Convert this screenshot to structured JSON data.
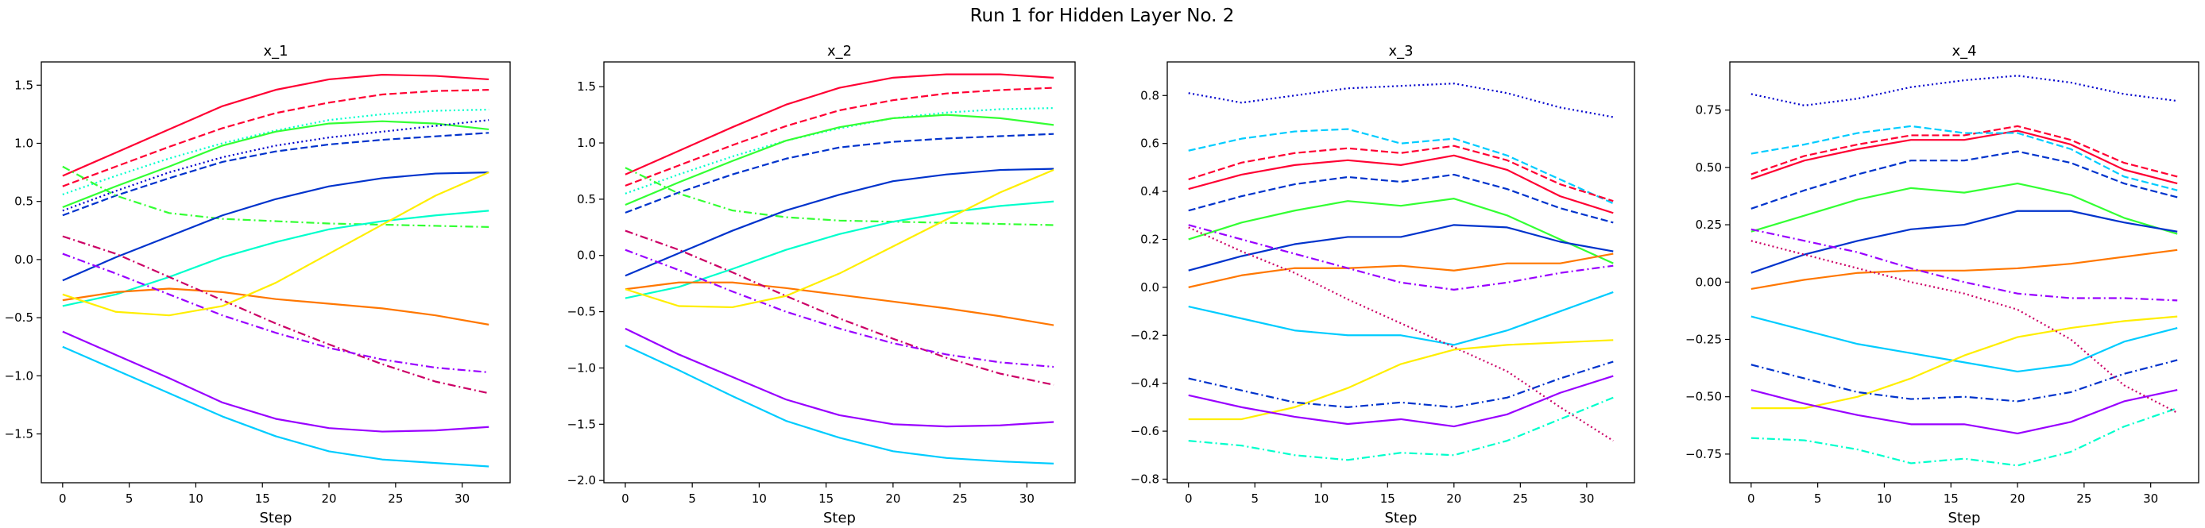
{
  "figure": {
    "title": "Run 1 for Hidden Layer No. 2"
  },
  "chart_data": [
    {
      "type": "line",
      "title": "x_1",
      "xlabel": "Step",
      "ylabel": "",
      "xlim": [
        -1.6,
        33.6
      ],
      "ylim": [
        -1.92,
        1.7
      ],
      "xticks": [
        0,
        5,
        10,
        15,
        20,
        25,
        30
      ],
      "yticks": [
        -1.5,
        -1.0,
        -0.5,
        0.0,
        0.5,
        1.0,
        1.5
      ],
      "x": [
        0,
        4,
        8,
        12,
        16,
        20,
        24,
        28,
        32
      ],
      "series": [
        {
          "color": "#ff0033",
          "style": "solid",
          "values": [
            0.72,
            0.92,
            1.12,
            1.32,
            1.46,
            1.55,
            1.59,
            1.58,
            1.55
          ]
        },
        {
          "color": "#ff0033",
          "style": "dashed",
          "values": [
            0.63,
            0.8,
            0.97,
            1.13,
            1.26,
            1.35,
            1.42,
            1.45,
            1.46
          ]
        },
        {
          "color": "#00ffcc",
          "style": "dotted",
          "values": [
            0.56,
            0.72,
            0.87,
            1.0,
            1.11,
            1.2,
            1.25,
            1.28,
            1.29
          ]
        },
        {
          "color": "#33ff33",
          "style": "solid",
          "values": [
            0.45,
            0.63,
            0.8,
            0.98,
            1.1,
            1.17,
            1.19,
            1.17,
            1.12
          ]
        },
        {
          "color": "#0000cc",
          "style": "dotted",
          "values": [
            0.42,
            0.59,
            0.75,
            0.88,
            0.98,
            1.05,
            1.1,
            1.15,
            1.2
          ]
        },
        {
          "color": "#0033cc",
          "style": "dashed",
          "values": [
            0.38,
            0.55,
            0.7,
            0.84,
            0.93,
            0.99,
            1.03,
            1.06,
            1.09
          ]
        },
        {
          "color": "#33ff33",
          "style": "dashdot",
          "values": [
            0.8,
            0.55,
            0.4,
            0.35,
            0.33,
            0.31,
            0.3,
            0.29,
            0.28
          ]
        },
        {
          "color": "#0033cc",
          "style": "solid",
          "values": [
            -0.18,
            0.02,
            0.2,
            0.38,
            0.52,
            0.63,
            0.7,
            0.74,
            0.75
          ]
        },
        {
          "color": "#00ffcc",
          "style": "solid",
          "values": [
            -0.4,
            -0.3,
            -0.15,
            0.02,
            0.15,
            0.26,
            0.33,
            0.38,
            0.42
          ]
        },
        {
          "color": "#ff7700",
          "style": "solid",
          "values": [
            -0.35,
            -0.28,
            -0.25,
            -0.28,
            -0.34,
            -0.38,
            -0.42,
            -0.48,
            -0.56
          ]
        },
        {
          "color": "#cc0066",
          "style": "dashdot",
          "values": [
            0.2,
            0.05,
            -0.15,
            -0.35,
            -0.55,
            -0.73,
            -0.9,
            -1.05,
            -1.15
          ]
        },
        {
          "color": "#9900ff",
          "style": "dashdot",
          "values": [
            0.05,
            -0.12,
            -0.3,
            -0.48,
            -0.63,
            -0.76,
            -0.86,
            -0.93,
            -0.97
          ]
        },
        {
          "color": "#00ccff",
          "style": "solid",
          "values": [
            -0.75,
            -0.95,
            -1.15,
            -1.35,
            -1.52,
            -1.65,
            -1.72,
            -1.75,
            -1.78
          ]
        },
        {
          "color": "#9900ff",
          "style": "solid",
          "values": [
            -0.62,
            -0.82,
            -1.02,
            -1.23,
            -1.37,
            -1.45,
            -1.48,
            -1.47,
            -1.44
          ]
        },
        {
          "color": "#ffee00",
          "style": "solid",
          "values": [
            -0.3,
            -0.45,
            -0.48,
            -0.4,
            -0.2,
            0.05,
            0.3,
            0.55,
            0.75
          ]
        }
      ]
    },
    {
      "type": "line",
      "title": "x_2",
      "xlabel": "Step",
      "ylabel": "",
      "xlim": [
        -1.6,
        33.6
      ],
      "ylim": [
        -2.02,
        1.72
      ],
      "xticks": [
        0,
        5,
        10,
        15,
        20,
        25,
        30
      ],
      "yticks": [
        -2.0,
        -1.5,
        -1.0,
        -0.5,
        0.0,
        0.5,
        1.0,
        1.5
      ],
      "x": [
        0,
        4,
        8,
        12,
        16,
        20,
        24,
        28,
        32
      ],
      "series": [
        {
          "color": "#ff0033",
          "style": "solid",
          "values": [
            0.72,
            0.93,
            1.14,
            1.34,
            1.49,
            1.58,
            1.61,
            1.61,
            1.58
          ]
        },
        {
          "color": "#ff0033",
          "style": "dashed",
          "values": [
            0.62,
            0.8,
            0.98,
            1.15,
            1.29,
            1.38,
            1.44,
            1.47,
            1.49
          ]
        },
        {
          "color": "#00ffcc",
          "style": "dotted",
          "values": [
            0.55,
            0.72,
            0.88,
            1.02,
            1.13,
            1.22,
            1.27,
            1.3,
            1.31
          ]
        },
        {
          "color": "#33ff33",
          "style": "solid",
          "values": [
            0.45,
            0.65,
            0.84,
            1.02,
            1.14,
            1.22,
            1.25,
            1.22,
            1.16
          ]
        },
        {
          "color": "#0033cc",
          "style": "dashed",
          "values": [
            0.38,
            0.56,
            0.72,
            0.86,
            0.96,
            1.01,
            1.04,
            1.06,
            1.08
          ]
        },
        {
          "color": "#33ff33",
          "style": "dashdot",
          "values": [
            0.78,
            0.55,
            0.4,
            0.34,
            0.31,
            0.3,
            0.29,
            0.28,
            0.27
          ]
        },
        {
          "color": "#0033cc",
          "style": "solid",
          "values": [
            -0.18,
            0.02,
            0.22,
            0.4,
            0.54,
            0.66,
            0.72,
            0.76,
            0.77
          ]
        },
        {
          "color": "#00ffcc",
          "style": "solid",
          "values": [
            -0.38,
            -0.28,
            -0.12,
            0.05,
            0.19,
            0.3,
            0.38,
            0.44,
            0.48
          ]
        },
        {
          "color": "#ff7700",
          "style": "solid",
          "values": [
            -0.3,
            -0.24,
            -0.24,
            -0.29,
            -0.35,
            -0.41,
            -0.47,
            -0.54,
            -0.62
          ]
        },
        {
          "color": "#cc0066",
          "style": "dashdot",
          "values": [
            0.22,
            0.05,
            -0.15,
            -0.36,
            -0.56,
            -0.74,
            -0.91,
            -1.05,
            -1.15
          ]
        },
        {
          "color": "#9900ff",
          "style": "dashdot",
          "values": [
            0.05,
            -0.13,
            -0.32,
            -0.5,
            -0.65,
            -0.78,
            -0.88,
            -0.95,
            -0.99
          ]
        },
        {
          "color": "#00ccff",
          "style": "solid",
          "values": [
            -0.8,
            -1.02,
            -1.25,
            -1.47,
            -1.62,
            -1.74,
            -1.8,
            -1.83,
            -1.85
          ]
        },
        {
          "color": "#9900ff",
          "style": "solid",
          "values": [
            -0.65,
            -0.88,
            -1.08,
            -1.28,
            -1.42,
            -1.5,
            -1.52,
            -1.51,
            -1.48
          ]
        },
        {
          "color": "#ffee00",
          "style": "solid",
          "values": [
            -0.3,
            -0.45,
            -0.46,
            -0.36,
            -0.16,
            0.08,
            0.32,
            0.56,
            0.76
          ]
        }
      ]
    },
    {
      "type": "line",
      "title": "x_3",
      "xlabel": "Step",
      "ylabel": "",
      "xlim": [
        -1.6,
        33.6
      ],
      "ylim": [
        -0.815,
        0.94
      ],
      "xticks": [
        0,
        5,
        10,
        15,
        20,
        25,
        30
      ],
      "yticks": [
        -0.8,
        -0.6,
        -0.4,
        -0.2,
        0.0,
        0.2,
        0.4,
        0.6,
        0.8
      ],
      "x": [
        0,
        4,
        8,
        12,
        16,
        20,
        24,
        28,
        32
      ],
      "series": [
        {
          "color": "#0000cc",
          "style": "dotted",
          "values": [
            0.81,
            0.77,
            0.8,
            0.83,
            0.84,
            0.85,
            0.81,
            0.75,
            0.71
          ]
        },
        {
          "color": "#00ccff",
          "style": "dashed",
          "values": [
            0.57,
            0.62,
            0.65,
            0.66,
            0.6,
            0.62,
            0.55,
            0.45,
            0.35
          ]
        },
        {
          "color": "#ff0033",
          "style": "dashed",
          "values": [
            0.45,
            0.52,
            0.56,
            0.58,
            0.56,
            0.59,
            0.53,
            0.43,
            0.36
          ]
        },
        {
          "color": "#ff0033",
          "style": "solid",
          "values": [
            0.41,
            0.47,
            0.51,
            0.53,
            0.51,
            0.55,
            0.49,
            0.38,
            0.31
          ]
        },
        {
          "color": "#0033cc",
          "style": "dashed",
          "values": [
            0.32,
            0.38,
            0.43,
            0.46,
            0.44,
            0.47,
            0.41,
            0.33,
            0.27
          ]
        },
        {
          "color": "#33ff33",
          "style": "solid",
          "values": [
            0.2,
            0.27,
            0.32,
            0.36,
            0.34,
            0.37,
            0.3,
            0.2,
            0.1
          ]
        },
        {
          "color": "#0033cc",
          "style": "solid",
          "values": [
            0.07,
            0.13,
            0.18,
            0.21,
            0.21,
            0.26,
            0.25,
            0.19,
            0.15
          ]
        },
        {
          "color": "#ff7700",
          "style": "solid",
          "values": [
            0.0,
            0.05,
            0.08,
            0.08,
            0.09,
            0.07,
            0.1,
            0.1,
            0.14
          ]
        },
        {
          "color": "#00ccff",
          "style": "solid",
          "values": [
            -0.08,
            -0.13,
            -0.18,
            -0.2,
            -0.2,
            -0.24,
            -0.18,
            -0.1,
            -0.02
          ]
        },
        {
          "color": "#cc0066",
          "style": "dotted",
          "values": [
            0.25,
            0.15,
            0.06,
            -0.05,
            -0.15,
            -0.25,
            -0.35,
            -0.5,
            -0.64
          ]
        },
        {
          "color": "#ffee00",
          "style": "solid",
          "values": [
            -0.55,
            -0.55,
            -0.5,
            -0.42,
            -0.32,
            -0.26,
            -0.24,
            -0.23,
            -0.22
          ]
        },
        {
          "color": "#9900ff",
          "style": "solid",
          "values": [
            -0.45,
            -0.5,
            -0.54,
            -0.57,
            -0.55,
            -0.58,
            -0.53,
            -0.44,
            -0.37
          ]
        },
        {
          "color": "#0033cc",
          "style": "dashdot",
          "values": [
            -0.38,
            -0.43,
            -0.48,
            -0.5,
            -0.48,
            -0.5,
            -0.46,
            -0.38,
            -0.31
          ]
        },
        {
          "color": "#00ffcc",
          "style": "dashdot",
          "values": [
            -0.64,
            -0.66,
            -0.7,
            -0.72,
            -0.69,
            -0.7,
            -0.64,
            -0.55,
            -0.46
          ]
        },
        {
          "color": "#9900ff",
          "style": "dashdot",
          "values": [
            0.26,
            0.2,
            0.14,
            0.08,
            0.02,
            -0.01,
            0.02,
            0.06,
            0.09
          ]
        }
      ]
    },
    {
      "type": "line",
      "title": "x_4",
      "xlabel": "Step",
      "ylabel": "",
      "xlim": [
        -1.6,
        33.6
      ],
      "ylim": [
        -0.875,
        0.96
      ],
      "xticks": [
        0,
        5,
        10,
        15,
        20,
        25,
        30
      ],
      "yticks": [
        -0.75,
        -0.5,
        -0.25,
        0.0,
        0.25,
        0.5,
        0.75
      ],
      "x": [
        0,
        4,
        8,
        12,
        16,
        20,
        24,
        28,
        32
      ],
      "series": [
        {
          "color": "#0000cc",
          "style": "dotted",
          "values": [
            0.82,
            0.77,
            0.8,
            0.85,
            0.88,
            0.9,
            0.87,
            0.82,
            0.79
          ]
        },
        {
          "color": "#ff0033",
          "style": "dashed",
          "values": [
            0.47,
            0.55,
            0.6,
            0.64,
            0.64,
            0.68,
            0.62,
            0.52,
            0.46
          ]
        },
        {
          "color": "#ff0033",
          "style": "solid",
          "values": [
            0.45,
            0.53,
            0.58,
            0.62,
            0.62,
            0.66,
            0.6,
            0.49,
            0.43
          ]
        },
        {
          "color": "#00ccff",
          "style": "dashed",
          "values": [
            0.56,
            0.6,
            0.65,
            0.68,
            0.65,
            0.65,
            0.58,
            0.46,
            0.4
          ]
        },
        {
          "color": "#0033cc",
          "style": "dashed",
          "values": [
            0.32,
            0.4,
            0.47,
            0.53,
            0.53,
            0.57,
            0.52,
            0.43,
            0.37
          ]
        },
        {
          "color": "#33ff33",
          "style": "solid",
          "values": [
            0.22,
            0.29,
            0.36,
            0.41,
            0.39,
            0.43,
            0.38,
            0.28,
            0.21
          ]
        },
        {
          "color": "#0033cc",
          "style": "solid",
          "values": [
            0.04,
            0.12,
            0.18,
            0.23,
            0.25,
            0.31,
            0.31,
            0.26,
            0.22
          ]
        },
        {
          "color": "#ff7700",
          "style": "solid",
          "values": [
            -0.03,
            0.01,
            0.04,
            0.05,
            0.05,
            0.06,
            0.08,
            0.11,
            0.14
          ]
        },
        {
          "color": "#00ccff",
          "style": "solid",
          "values": [
            -0.15,
            -0.21,
            -0.27,
            -0.31,
            -0.35,
            -0.39,
            -0.36,
            -0.26,
            -0.2
          ]
        },
        {
          "color": "#ffee00",
          "style": "solid",
          "values": [
            -0.55,
            -0.55,
            -0.5,
            -0.42,
            -0.32,
            -0.24,
            -0.2,
            -0.17,
            -0.15
          ]
        },
        {
          "color": "#9900ff",
          "style": "solid",
          "values": [
            -0.47,
            -0.53,
            -0.58,
            -0.62,
            -0.62,
            -0.66,
            -0.61,
            -0.52,
            -0.47
          ]
        },
        {
          "color": "#0033cc",
          "style": "dashdot",
          "values": [
            -0.36,
            -0.42,
            -0.48,
            -0.51,
            -0.5,
            -0.52,
            -0.48,
            -0.4,
            -0.34
          ]
        },
        {
          "color": "#00ffcc",
          "style": "dashdot",
          "values": [
            -0.68,
            -0.69,
            -0.73,
            -0.79,
            -0.77,
            -0.8,
            -0.74,
            -0.63,
            -0.55
          ]
        },
        {
          "color": "#cc0066",
          "style": "dotted",
          "values": [
            0.18,
            0.12,
            0.06,
            0.0,
            -0.05,
            -0.12,
            -0.25,
            -0.45,
            -0.57
          ]
        },
        {
          "color": "#9900ff",
          "style": "dashdot",
          "values": [
            0.23,
            0.18,
            0.13,
            0.06,
            0.0,
            -0.05,
            -0.07,
            -0.07,
            -0.08
          ]
        }
      ]
    }
  ]
}
